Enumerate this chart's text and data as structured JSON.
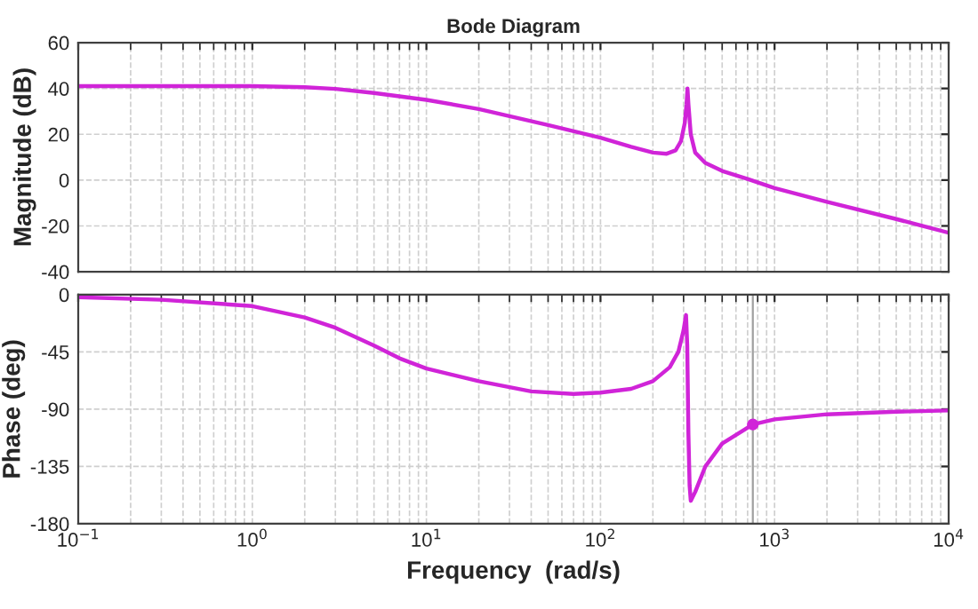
{
  "chart_data": [
    {
      "type": "line",
      "title": "Bode Diagram",
      "ylabel": "Magnitude (dB)",
      "log": "x",
      "grid": true,
      "tick_labels": "y",
      "xlim": [
        0.1,
        10000
      ],
      "ylim": [
        -40,
        60
      ],
      "yticks": [
        -40,
        -20,
        0,
        20,
        40,
        60
      ],
      "series": [
        {
          "color": "#d024d8",
          "x": [
            0.1,
            0.3,
            1,
            2,
            3,
            5,
            10,
            20,
            50,
            100,
            150,
            200,
            240,
            270,
            290,
            305,
            312,
            316,
            320,
            330,
            350,
            400,
            500,
            700,
            1000,
            2000,
            5000,
            10000
          ],
          "values": [
            41,
            41,
            41,
            40.5,
            39.8,
            38,
            35,
            31,
            24,
            18.5,
            14.5,
            12,
            11.5,
            13,
            17,
            25,
            33,
            40,
            33,
            20,
            12,
            7.5,
            4,
            0.5,
            -3.5,
            -9.5,
            -17,
            -23
          ]
        }
      ]
    },
    {
      "type": "line",
      "xlabel": "Frequency  (rad/s)",
      "ylabel": "Phase (deg)",
      "log": "x",
      "grid": true,
      "xlim": [
        0.1,
        10000
      ],
      "xticks": [
        {
          "value": 0.1,
          "label": "10$^{−1}$"
        },
        {
          "value": 1,
          "label": "10$^{0}$"
        },
        {
          "value": 10,
          "label": "10$^{1}$"
        },
        {
          "value": 100,
          "label": "10$^{2}$"
        },
        {
          "value": 1000,
          "label": "10$^{3}$"
        },
        {
          "value": 10000,
          "label": "10$^{4}$"
        }
      ],
      "ylim": [
        -180,
        0
      ],
      "yticks": [
        -180,
        -135,
        -90,
        -45,
        0
      ],
      "ref_lines": [
        {
          "axis": "x",
          "value": 750,
          "color": "#a0a0a0"
        }
      ],
      "series": [
        {
          "color": "#d024d8",
          "x": [
            0.1,
            0.3,
            1,
            2,
            3,
            5,
            7,
            10,
            20,
            40,
            70,
            100,
            150,
            200,
            250,
            280,
            300,
            310,
            315,
            320,
            325,
            330,
            350,
            400,
            500,
            750,
            1000,
            2000,
            5000,
            10000
          ],
          "values": [
            -2,
            -4,
            -9,
            -18,
            -26,
            -40,
            -50,
            -58,
            -68,
            -76,
            -78,
            -77,
            -74,
            -68,
            -57,
            -45,
            -28,
            -16,
            -40,
            -110,
            -150,
            -162,
            -155,
            -135,
            -117,
            -102,
            -98,
            -94,
            -92,
            -91
          ]
        },
        {
          "type": "scatter",
          "color": "#d024d8",
          "marker": "circle",
          "x": [
            750
          ],
          "values": [
            -102
          ]
        }
      ]
    }
  ]
}
